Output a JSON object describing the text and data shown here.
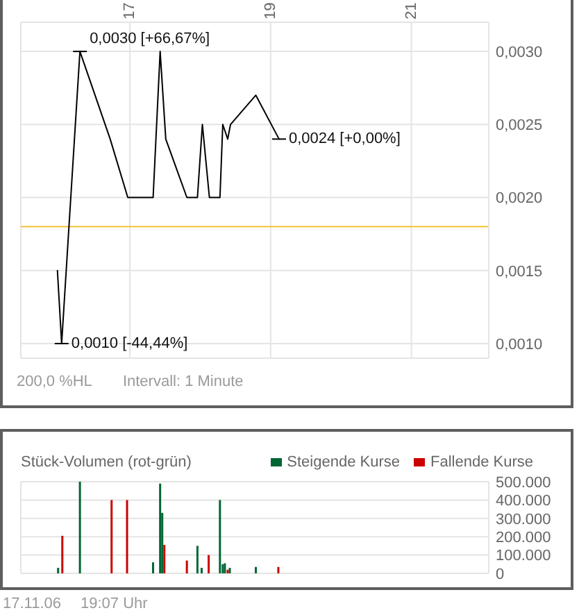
{
  "chart_data": [
    {
      "type": "line",
      "x": [
        15.97,
        16.03,
        16.29,
        16.72,
        16.97,
        17.33,
        17.43,
        17.51,
        17.81,
        17.96,
        18.03,
        18.13,
        18.28,
        18.32,
        18.39,
        18.43,
        18.79,
        19.12
      ],
      "values": [
        0.0015,
        0.001,
        0.003,
        0.0024,
        0.002,
        0.002,
        0.003,
        0.0024,
        0.002,
        0.002,
        0.0025,
        0.002,
        0.002,
        0.0025,
        0.0024,
        0.0025,
        0.0027,
        0.0024
      ],
      "color": "#000000",
      "xlim": [
        15.45,
        22.1
      ],
      "xticks": [
        17,
        19,
        21
      ],
      "ylim": [
        0.0009,
        0.0032
      ],
      "yticks": [
        {
          "value": 0.001,
          "label": "0,0010"
        },
        {
          "value": 0.0015,
          "label": "0,0015"
        },
        {
          "value": 0.002,
          "label": "0,0020"
        },
        {
          "value": 0.0025,
          "label": "0,0025"
        },
        {
          "value": 0.003,
          "label": "0,0030"
        }
      ],
      "grid": true,
      "ref_lines": [
        {
          "axis": "y",
          "value": 0.0018,
          "color": "#f2c12e"
        }
      ],
      "annotations": [
        {
          "text": "0,0030 [+66,67%]",
          "x": 16.29,
          "y": 0.003
        },
        {
          "text": "0,0010 [-44,44%]",
          "x": 16.03,
          "y": 0.001
        },
        {
          "text": "0,0024 [+0,00%]",
          "x": 19.12,
          "y": 0.0024
        },
        "200,0 %HL",
        "Intervall: 1 Minute"
      ]
    },
    {
      "type": "bar",
      "title": "Stück-Volumen (rot-grün)",
      "series": [
        {
          "name": "Steigende Kurse",
          "color": "#006633",
          "x": [
            15.98,
            16.29,
            17.33,
            17.43,
            17.46,
            17.96,
            18.02,
            18.28,
            18.32,
            18.35,
            18.42,
            18.79
          ],
          "values": [
            30000,
            500000,
            60000,
            490000,
            330000,
            150000,
            30000,
            400000,
            50000,
            55000,
            30000,
            35000
          ]
        },
        {
          "name": "Fallende Kurse",
          "color": "#cc0000",
          "x": [
            16.04,
            16.74,
            16.96,
            17.49,
            17.81,
            18.12,
            18.39,
            19.11
          ],
          "values": [
            205000,
            400000,
            400000,
            155000,
            70000,
            100000,
            20000,
            35000
          ]
        }
      ],
      "xlim": [
        15.45,
        22.1
      ],
      "xticks": [
        17,
        19,
        21
      ],
      "tick_labels": "y",
      "ylim": [
        0,
        500000
      ],
      "yticks": [
        {
          "value": 0,
          "label": "0"
        },
        {
          "value": 100000,
          "label": "100.000"
        },
        {
          "value": 200000,
          "label": "200.000"
        },
        {
          "value": 300000,
          "label": "300.000"
        },
        {
          "value": 400000,
          "label": "400.000"
        },
        {
          "value": 500000,
          "label": "500.000"
        }
      ],
      "grid": true,
      "legend": "top right",
      "annotations": [
        "17.11.06",
        "19:07 Uhr"
      ]
    }
  ]
}
